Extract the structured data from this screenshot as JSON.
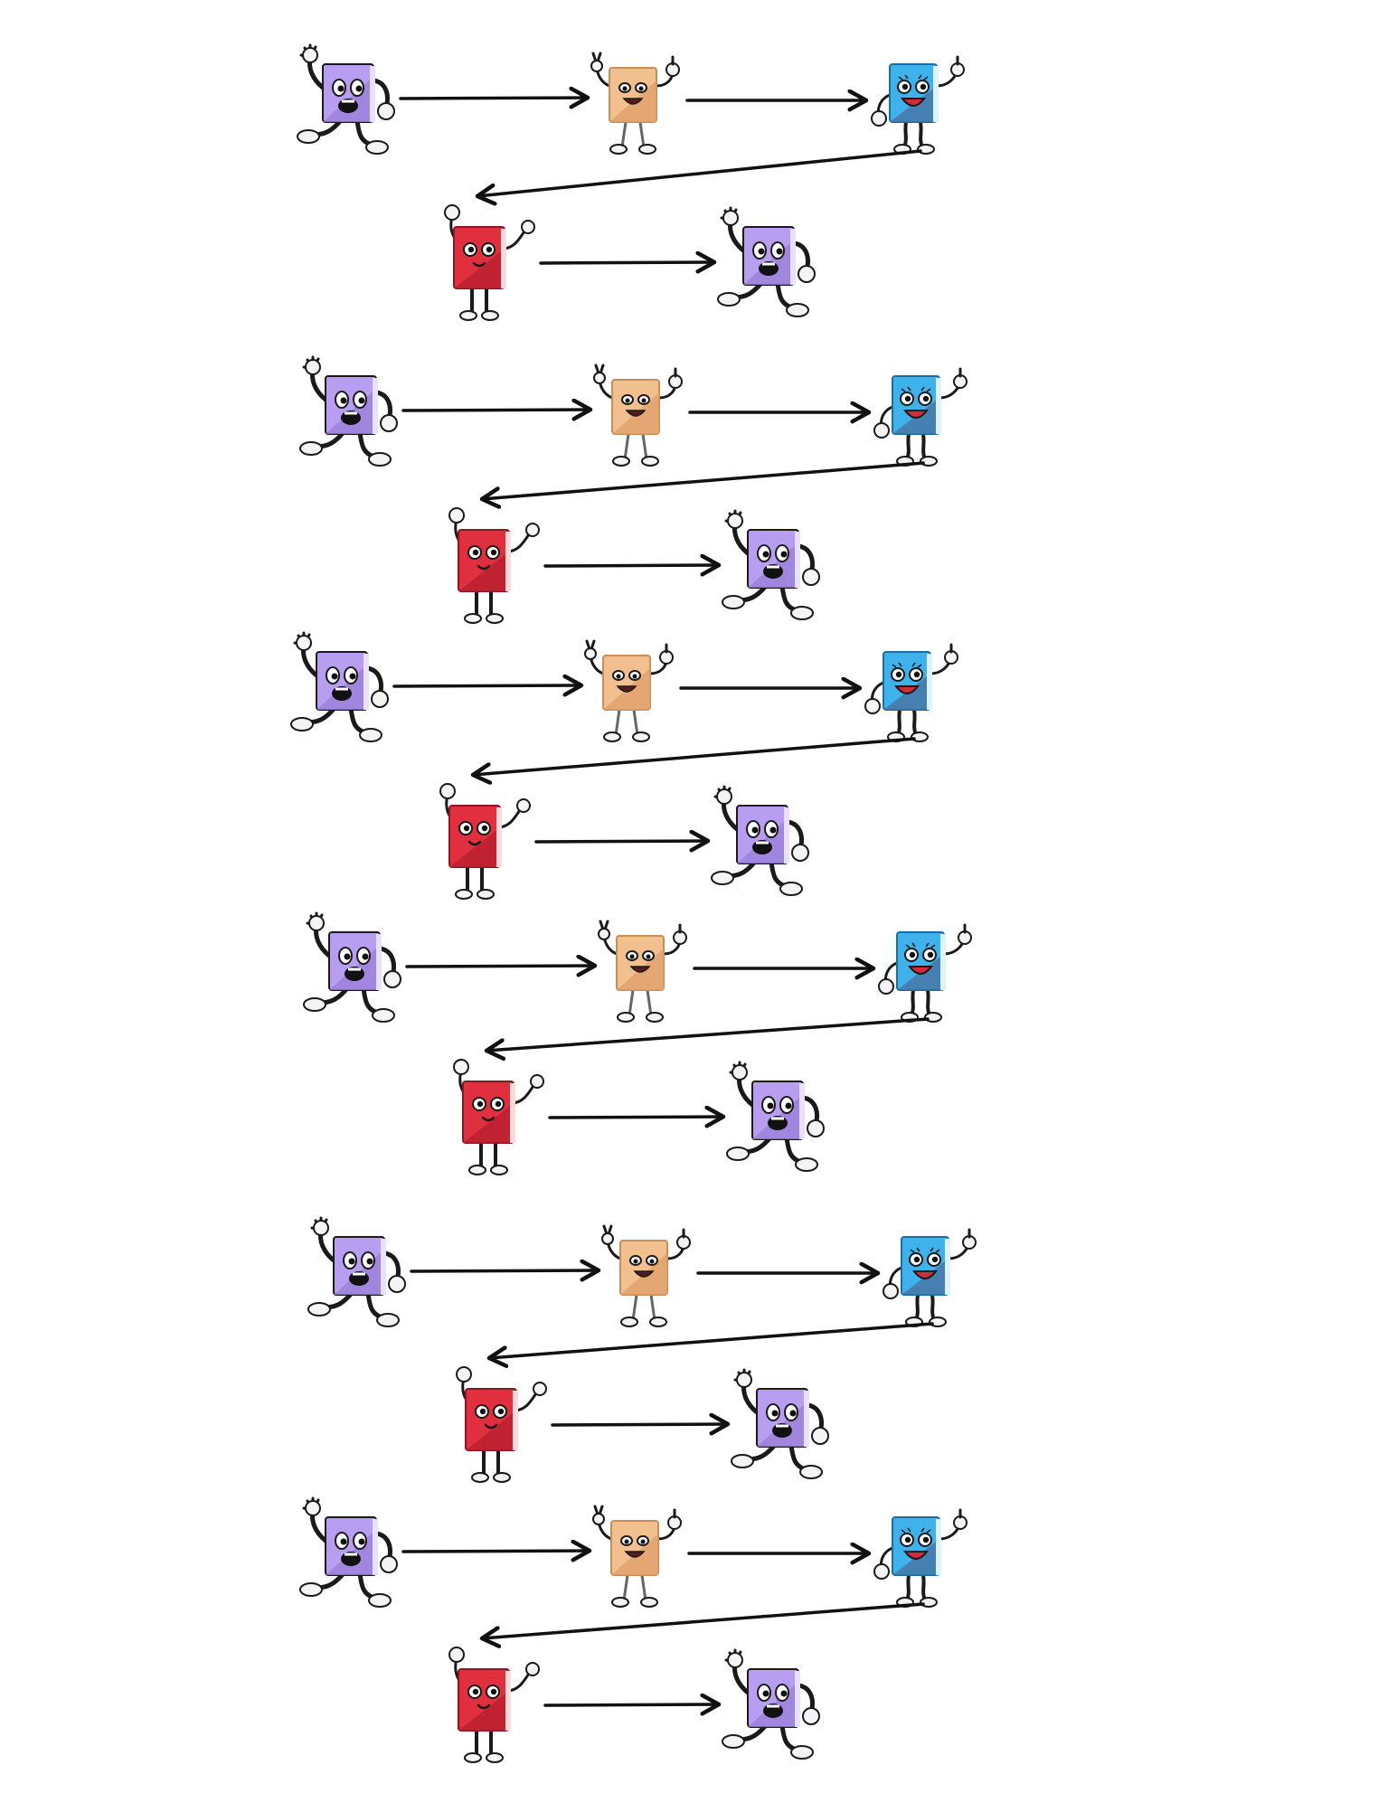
{
  "diagram": {
    "type": "character-sequence",
    "colors": {
      "purple": "#b89ef0",
      "peach": "#f2bf8f",
      "blue": "#3fb2ec",
      "red": "#e0303f",
      "arrow": "#111111",
      "outline": "#1a1a1a",
      "glove": "#f4f4f4"
    },
    "pattern": {
      "long_row": [
        "purple-book-character",
        "peach-book-character",
        "blue-book-character"
      ],
      "short_row": [
        "red-book-character",
        "purple-book-character"
      ]
    },
    "blocks": [
      {
        "id": "block-1"
      },
      {
        "id": "block-2"
      },
      {
        "id": "block-3"
      },
      {
        "id": "block-4"
      },
      {
        "id": "block-5"
      },
      {
        "id": "block-6"
      }
    ]
  }
}
